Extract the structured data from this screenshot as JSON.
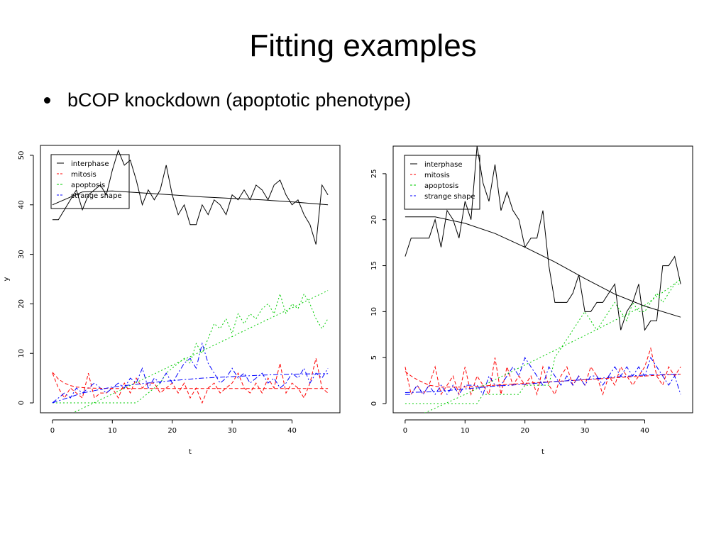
{
  "slide": {
    "title": "Fitting examples",
    "bullet": "bCOP knockdown (apoptotic phenotype)"
  },
  "colors": {
    "interphase": "#000000",
    "mitosis": "#ff0000",
    "apoptosis": "#00cc00",
    "strange_shape": "#0000ff"
  },
  "chart_data": [
    {
      "type": "line",
      "xlabel": "t",
      "ylabel": "y",
      "xlim": [
        -2,
        48
      ],
      "ylim": [
        -2,
        52
      ],
      "xticks": [
        0,
        10,
        20,
        30,
        40
      ],
      "yticks": [
        0,
        10,
        20,
        30,
        40,
        50
      ],
      "legend_position": "top-left",
      "series": [
        {
          "name": "interphase",
          "style": "solid",
          "x": [
            0,
            1,
            2,
            3,
            4,
            5,
            6,
            7,
            8,
            9,
            10,
            11,
            12,
            13,
            14,
            15,
            16,
            17,
            18,
            19,
            20,
            21,
            22,
            23,
            24,
            25,
            26,
            27,
            28,
            29,
            30,
            31,
            32,
            33,
            34,
            35,
            36,
            37,
            38,
            39,
            40,
            41,
            42,
            43,
            44,
            45,
            46
          ],
          "values": [
            37,
            37,
            39,
            41,
            43,
            39,
            42,
            43,
            44,
            42,
            47,
            51,
            48,
            49,
            45,
            40,
            43,
            41,
            43,
            48,
            42,
            38,
            40,
            36,
            36,
            40,
            38,
            41,
            40,
            38,
            42,
            41,
            43,
            41,
            44,
            43,
            41,
            44,
            45,
            42,
            40,
            41,
            38,
            36,
            32,
            44,
            42
          ]
        },
        {
          "name": "mitosis",
          "style": "dashed",
          "x": [
            0,
            1,
            2,
            3,
            4,
            5,
            6,
            7,
            8,
            9,
            10,
            11,
            12,
            13,
            14,
            15,
            16,
            17,
            18,
            19,
            20,
            21,
            22,
            23,
            24,
            25,
            26,
            27,
            28,
            29,
            30,
            31,
            32,
            33,
            34,
            35,
            36,
            37,
            38,
            39,
            40,
            41,
            42,
            43,
            44,
            45,
            46
          ],
          "values": [
            6,
            3,
            1,
            3,
            2,
            1,
            6,
            1,
            2,
            2,
            3,
            1,
            4,
            2,
            5,
            3,
            4,
            4,
            2,
            3,
            4,
            2,
            4,
            1,
            3,
            0,
            3,
            4,
            2,
            3,
            4,
            6,
            3,
            2,
            4,
            2,
            5,
            3,
            8,
            2,
            4,
            3,
            1,
            4,
            9,
            3,
            2
          ]
        },
        {
          "name": "apoptosis",
          "style": "dotted",
          "x": [
            0,
            1,
            2,
            3,
            4,
            5,
            6,
            7,
            8,
            9,
            10,
            11,
            12,
            13,
            14,
            15,
            16,
            17,
            18,
            19,
            20,
            21,
            22,
            23,
            24,
            25,
            26,
            27,
            28,
            29,
            30,
            31,
            32,
            33,
            34,
            35,
            36,
            37,
            38,
            39,
            40,
            41,
            42,
            43,
            44,
            45,
            46
          ],
          "values": [
            0,
            0,
            0,
            0,
            0,
            0,
            0,
            0,
            0,
            0,
            0,
            0,
            0,
            0,
            0,
            1,
            2,
            3,
            4,
            6,
            7,
            8,
            9,
            8,
            12,
            10,
            13,
            16,
            15,
            17,
            14,
            18,
            16,
            18,
            17,
            19,
            20,
            18,
            22,
            18,
            20,
            19,
            22,
            20,
            17,
            15,
            17
          ]
        },
        {
          "name": "strange shape",
          "style": "dashdot",
          "x": [
            0,
            1,
            2,
            3,
            4,
            5,
            6,
            7,
            8,
            9,
            10,
            11,
            12,
            13,
            14,
            15,
            16,
            17,
            18,
            19,
            20,
            21,
            22,
            23,
            24,
            25,
            26,
            27,
            28,
            29,
            30,
            31,
            32,
            33,
            34,
            35,
            36,
            37,
            38,
            39,
            40,
            41,
            42,
            43,
            44,
            45,
            46
          ],
          "values": [
            0,
            1,
            2,
            1,
            3,
            2,
            3,
            4,
            3,
            2,
            3,
            4,
            3,
            5,
            4,
            7,
            3,
            5,
            4,
            6,
            4,
            6,
            8,
            9,
            7,
            12,
            8,
            6,
            4,
            5,
            7,
            5,
            6,
            4,
            5,
            6,
            4,
            5,
            3,
            4,
            6,
            5,
            7,
            4,
            6,
            5,
            7
          ]
        }
      ],
      "fits": [
        {
          "name": "interphase",
          "style": "solid",
          "x": [
            0,
            5,
            10,
            15,
            20,
            25,
            30,
            35,
            40,
            46
          ],
          "values": [
            40,
            42.6,
            42.8,
            42.4,
            42.0,
            41.6,
            41.3,
            41.0,
            40.6,
            40.0
          ]
        },
        {
          "name": "mitosis",
          "style": "dashed",
          "x": [
            0,
            1,
            2,
            3,
            4,
            6,
            10,
            20,
            30,
            40,
            46
          ],
          "values": [
            6.2,
            4.8,
            4.0,
            3.5,
            3.2,
            3.0,
            2.9,
            2.9,
            2.9,
            2.9,
            2.9
          ]
        },
        {
          "name": "apoptosis",
          "style": "dotted",
          "x": [
            0,
            10,
            20,
            30,
            40,
            46
          ],
          "values": [
            -4.0,
            1.8,
            7.6,
            13.4,
            19.2,
            22.7
          ]
        },
        {
          "name": "strange shape",
          "style": "dashdot",
          "x": [
            0,
            5,
            10,
            15,
            20,
            25,
            30,
            35,
            40,
            46
          ],
          "values": [
            0.0,
            2.0,
            3.2,
            3.9,
            4.5,
            5.0,
            5.3,
            5.6,
            5.8,
            5.9
          ]
        }
      ]
    },
    {
      "type": "line",
      "xlabel": "t",
      "ylabel": "",
      "xlim": [
        -2,
        48
      ],
      "ylim": [
        -1,
        28
      ],
      "xticks": [
        0,
        10,
        20,
        30,
        40
      ],
      "yticks": [
        0,
        5,
        10,
        15,
        20,
        25
      ],
      "legend_position": "top-left",
      "series": [
        {
          "name": "interphase",
          "style": "solid",
          "x": [
            0,
            1,
            2,
            3,
            4,
            5,
            6,
            7,
            8,
            9,
            10,
            11,
            12,
            13,
            14,
            15,
            16,
            17,
            18,
            19,
            20,
            21,
            22,
            23,
            24,
            25,
            26,
            27,
            28,
            29,
            30,
            31,
            32,
            33,
            34,
            35,
            36,
            37,
            38,
            39,
            40,
            41,
            42,
            43,
            44,
            45,
            46
          ],
          "values": [
            16,
            18,
            18,
            18,
            18,
            20,
            17,
            21,
            20,
            18,
            22,
            20,
            28,
            24,
            22,
            26,
            21,
            23,
            21,
            20,
            17,
            18,
            18,
            21,
            15,
            11,
            11,
            11,
            12,
            14,
            10,
            10,
            11,
            11,
            12,
            13,
            8,
            10,
            11,
            13,
            8,
            9,
            9,
            15,
            15,
            16,
            13
          ]
        },
        {
          "name": "mitosis",
          "style": "dashed",
          "x": [
            0,
            1,
            2,
            3,
            4,
            5,
            6,
            7,
            8,
            9,
            10,
            11,
            12,
            13,
            14,
            15,
            16,
            17,
            18,
            19,
            20,
            21,
            22,
            23,
            24,
            25,
            26,
            27,
            28,
            29,
            30,
            31,
            32,
            33,
            34,
            35,
            36,
            37,
            38,
            39,
            40,
            41,
            42,
            43,
            44,
            45,
            46
          ],
          "values": [
            4,
            1,
            2,
            1,
            2,
            4,
            1,
            2,
            3,
            1,
            4,
            1,
            3,
            2,
            1,
            5,
            1,
            4,
            2,
            3,
            2,
            3,
            1,
            4,
            2,
            1,
            3,
            4,
            2,
            3,
            2,
            4,
            3,
            1,
            3,
            2,
            4,
            3,
            2,
            3,
            4,
            6,
            3,
            2,
            4,
            3,
            4
          ]
        },
        {
          "name": "apoptosis",
          "style": "dotted",
          "x": [
            0,
            1,
            2,
            3,
            4,
            5,
            6,
            7,
            8,
            9,
            10,
            11,
            12,
            13,
            14,
            15,
            16,
            17,
            18,
            19,
            20,
            21,
            22,
            23,
            24,
            25,
            26,
            27,
            28,
            29,
            30,
            31,
            32,
            33,
            34,
            35,
            36,
            37,
            38,
            39,
            40,
            41,
            42,
            43,
            44,
            45,
            46
          ],
          "values": [
            0,
            0,
            0,
            0,
            0,
            0,
            0,
            0,
            0,
            0,
            0,
            0,
            0,
            1,
            1,
            1,
            1,
            1,
            1,
            1,
            2,
            2,
            2,
            2,
            2,
            5,
            6,
            7,
            8,
            9,
            10,
            9,
            8,
            9,
            10,
            11,
            10,
            9,
            11,
            10,
            10,
            11,
            12,
            11,
            12,
            13,
            13
          ]
        },
        {
          "name": "strange shape",
          "style": "dashdot",
          "x": [
            0,
            1,
            2,
            3,
            4,
            5,
            6,
            7,
            8,
            9,
            10,
            11,
            12,
            13,
            14,
            15,
            16,
            17,
            18,
            19,
            20,
            21,
            22,
            23,
            24,
            25,
            26,
            27,
            28,
            29,
            30,
            31,
            32,
            33,
            34,
            35,
            36,
            37,
            38,
            39,
            40,
            41,
            42,
            43,
            44,
            45,
            46
          ],
          "values": [
            1,
            1,
            2,
            1,
            2,
            1,
            2,
            1,
            2,
            1,
            2,
            2,
            2,
            1,
            3,
            2,
            2,
            3,
            4,
            3,
            5,
            4,
            3,
            2,
            4,
            3,
            2,
            3,
            2,
            3,
            2,
            3,
            3,
            2,
            3,
            4,
            3,
            4,
            3,
            4,
            3,
            5,
            4,
            3,
            2,
            3,
            1
          ]
        }
      ],
      "fits": [
        {
          "name": "interphase",
          "style": "solid",
          "x": [
            0,
            5,
            10,
            15,
            20,
            25,
            30,
            35,
            40,
            46
          ],
          "values": [
            20.3,
            20.3,
            19.6,
            18.5,
            17.0,
            15.4,
            13.6,
            11.9,
            10.6,
            9.4
          ]
        },
        {
          "name": "mitosis",
          "style": "dashed",
          "x": [
            0,
            1,
            2,
            3,
            4,
            6,
            10,
            20,
            30,
            40,
            46
          ],
          "values": [
            3.5,
            3.0,
            2.6,
            2.3,
            2.0,
            1.8,
            1.8,
            2.2,
            2.6,
            3.0,
            3.2
          ]
        },
        {
          "name": "apoptosis",
          "style": "dotted",
          "x": [
            0,
            10,
            20,
            30,
            40,
            46
          ],
          "values": [
            -2.0,
            1.0,
            4.2,
            7.4,
            10.7,
            13.5
          ]
        },
        {
          "name": "strange shape",
          "style": "dashdot",
          "x": [
            0,
            5,
            10,
            15,
            20,
            25,
            30,
            35,
            40,
            46
          ],
          "values": [
            1.2,
            1.3,
            1.6,
            1.9,
            2.1,
            2.4,
            2.6,
            2.9,
            3.1,
            3.2
          ]
        }
      ]
    }
  ]
}
